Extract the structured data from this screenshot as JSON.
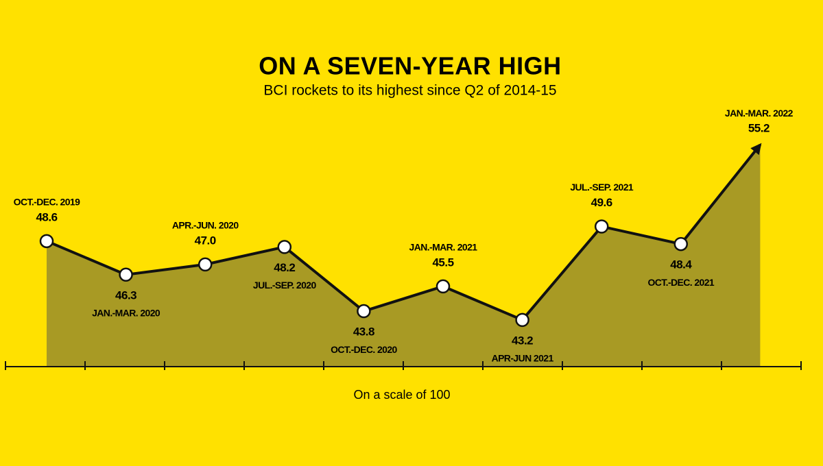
{
  "chart_data": {
    "type": "area",
    "title": "ON A SEVEN-YEAR HIGH",
    "subtitle": "BCI rockets to its highest since Q2 of 2014-15",
    "note": "On a scale of 100",
    "categories": [
      "OCT.-DEC. 2019",
      "JAN.-MAR. 2020",
      "APR.-JUN. 2020",
      "JUL.-SEP. 2020",
      "OCT.-DEC. 2020",
      "JAN.-MAR. 2021",
      "APR-JUN 2021",
      "JUL.-SEP. 2021",
      "OCT.-DEC. 2021",
      "JAN.-MAR. 2022"
    ],
    "values": [
      48.6,
      46.3,
      47,
      48.2,
      43.8,
      45.5,
      43.2,
      49.6,
      48.4,
      55.2
    ],
    "value_labels": [
      "48.6",
      "46.3",
      "47.0",
      "48.2",
      "43.8",
      "45.5",
      "43.2",
      "49.6",
      "48.4",
      "55.2"
    ],
    "ylim": [
      40,
      60
    ],
    "color": "#a89a24",
    "line_color": "#111111"
  }
}
